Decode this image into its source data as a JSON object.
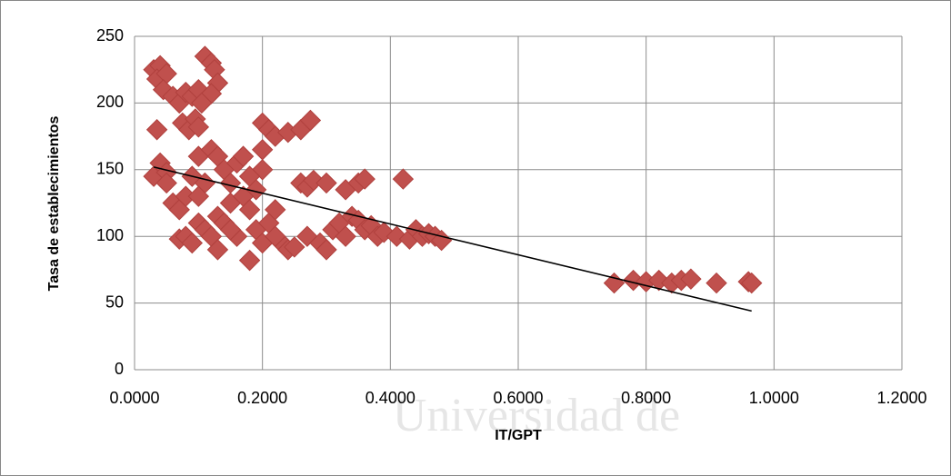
{
  "chart_data": {
    "type": "scatter",
    "x_label": "IT/GPT",
    "y_label": "Tasa de establecimientos",
    "watermark": "Universidad de",
    "color": "#c0504d",
    "grid": true,
    "xlim": [
      0,
      1.2
    ],
    "ylim": [
      0,
      250
    ],
    "xticks": [
      {
        "value": 0,
        "label": "0.0000"
      },
      {
        "value": 0.2,
        "label": "0.2000"
      },
      {
        "value": 0.4,
        "label": "0.4000"
      },
      {
        "value": 0.6,
        "label": "0.6000"
      },
      {
        "value": 0.8,
        "label": "0.8000"
      },
      {
        "value": 1,
        "label": "1.0000"
      },
      {
        "value": 1.2,
        "label": "1.2000"
      }
    ],
    "yticks": [
      0,
      50,
      100,
      150,
      200,
      250
    ],
    "x": [
      0.03,
      0.04,
      0.035,
      0.05,
      0.045,
      0.06,
      0.07,
      0.08,
      0.09,
      0.1,
      0.11,
      0.12,
      0.125,
      0.13,
      0.12,
      0.105,
      0.075,
      0.085,
      0.095,
      0.1,
      0.035,
      0.2,
      0.21,
      0.22,
      0.24,
      0.26,
      0.275,
      0.2,
      0.2,
      0.03,
      0.04,
      0.05,
      0.06,
      0.07,
      0.08,
      0.09,
      0.1,
      0.11,
      0.12,
      0.13,
      0.14,
      0.15,
      0.16,
      0.17,
      0.18,
      0.19,
      0.07,
      0.08,
      0.09,
      0.1,
      0.11,
      0.12,
      0.13,
      0.14,
      0.15,
      0.16,
      0.17,
      0.18,
      0.19,
      0.2,
      0.21,
      0.22,
      0.23,
      0.24,
      0.25,
      0.18,
      0.26,
      0.27,
      0.28,
      0.3,
      0.33,
      0.35,
      0.36,
      0.42,
      0.27,
      0.29,
      0.3,
      0.31,
      0.32,
      0.33,
      0.34,
      0.35,
      0.36,
      0.37,
      0.38,
      0.39,
      0.41,
      0.43,
      0.44,
      0.45,
      0.46,
      0.47,
      0.48,
      0.75,
      0.78,
      0.8,
      0.82,
      0.84,
      0.855,
      0.87,
      0.91,
      0.96,
      0.965,
      0.15,
      0.22,
      0.1,
      0.05,
      0.13
    ],
    "values": [
      225,
      228,
      218,
      222,
      210,
      205,
      200,
      208,
      205,
      210,
      235,
      230,
      225,
      215,
      207,
      200,
      185,
      180,
      188,
      182,
      180,
      185,
      180,
      175,
      178,
      180,
      187,
      165,
      150,
      145,
      155,
      148,
      125,
      120,
      130,
      145,
      160,
      140,
      165,
      160,
      150,
      140,
      155,
      160,
      145,
      135,
      98,
      100,
      95,
      110,
      105,
      100,
      115,
      110,
      125,
      100,
      130,
      120,
      105,
      95,
      110,
      120,
      95,
      90,
      92,
      82,
      140,
      137,
      142,
      140,
      135,
      140,
      143,
      143,
      100,
      95,
      90,
      105,
      110,
      100,
      115,
      112,
      105,
      108,
      100,
      103,
      100,
      98,
      105,
      100,
      102,
      100,
      97,
      65,
      67,
      66,
      67,
      65,
      67,
      68,
      65,
      66,
      65,
      105,
      100,
      130,
      140,
      90
    ],
    "trendline": {
      "x": [
        0.03,
        0.965
      ],
      "y": [
        152,
        44
      ],
      "color": "#000000"
    }
  }
}
